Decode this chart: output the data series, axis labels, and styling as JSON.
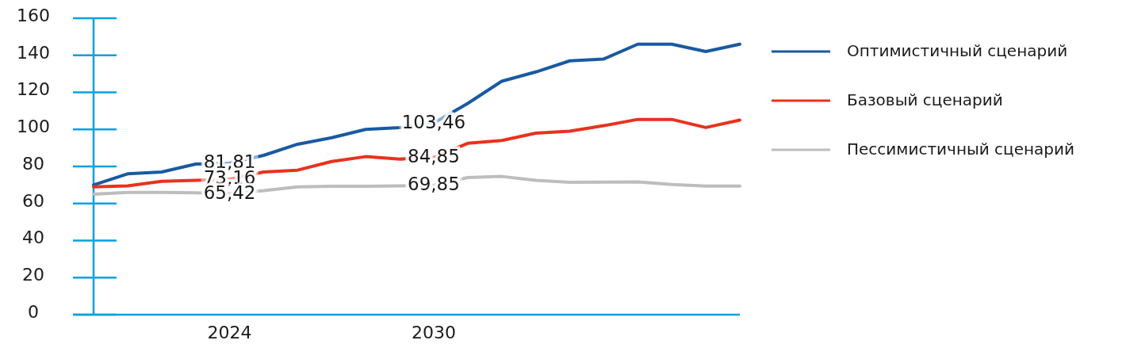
{
  "chart_data": {
    "type": "line",
    "x": [
      2020,
      2021,
      2022,
      2023,
      2024,
      2025,
      2026,
      2027,
      2028,
      2029,
      2030,
      2031,
      2032,
      2033,
      2034,
      2035,
      2036,
      2037,
      2038,
      2039
    ],
    "xlim": [
      2020,
      2039
    ],
    "xticks": [
      2024,
      2030
    ],
    "ylim": [
      0,
      160
    ],
    "yticks": [
      0,
      20,
      40,
      60,
      80,
      100,
      120,
      140,
      160
    ],
    "grid": false,
    "legend": "right",
    "marker": "none",
    "line_style": "solid",
    "series": [
      {
        "name": "Оптимистичный сценарий",
        "color": "#1a5aa0",
        "values": [
          70,
          76,
          77,
          81.3,
          81.81,
          86,
          92,
          95.5,
          100,
          101,
          103.46,
          114,
          126,
          131,
          137,
          138,
          146,
          146,
          142,
          146
        ],
        "value_labels": [
          null,
          null,
          null,
          null,
          "81,81",
          null,
          null,
          null,
          null,
          null,
          "103,46",
          null,
          null,
          null,
          null,
          null,
          null,
          null,
          null,
          null
        ]
      },
      {
        "name": "Базовый сценарий",
        "color": "#e8321e",
        "values": [
          69,
          69.5,
          72,
          72.5,
          73.16,
          77,
          78,
          82.7,
          85.3,
          84,
          84.85,
          92.5,
          94,
          98,
          99,
          102,
          105.4,
          105.4,
          101,
          105
        ],
        "value_labels": [
          null,
          null,
          null,
          null,
          "73,16",
          null,
          null,
          null,
          null,
          null,
          "84,85",
          null,
          null,
          null,
          null,
          null,
          null,
          null,
          null,
          null
        ]
      },
      {
        "name": "Пессимистичный сценарий",
        "color": "#bdbdbd",
        "values": [
          65,
          66,
          66,
          65.8,
          65.42,
          67,
          69,
          69.3,
          69.3,
          69.5,
          69.85,
          74,
          74.6,
          72.5,
          71.4,
          71.5,
          71.7,
          70.3,
          69.4,
          69.4
        ],
        "value_labels": [
          null,
          null,
          null,
          null,
          "65,42",
          null,
          null,
          null,
          null,
          null,
          "69,85",
          null,
          null,
          null,
          null,
          null,
          null,
          null,
          null,
          null
        ]
      }
    ]
  }
}
